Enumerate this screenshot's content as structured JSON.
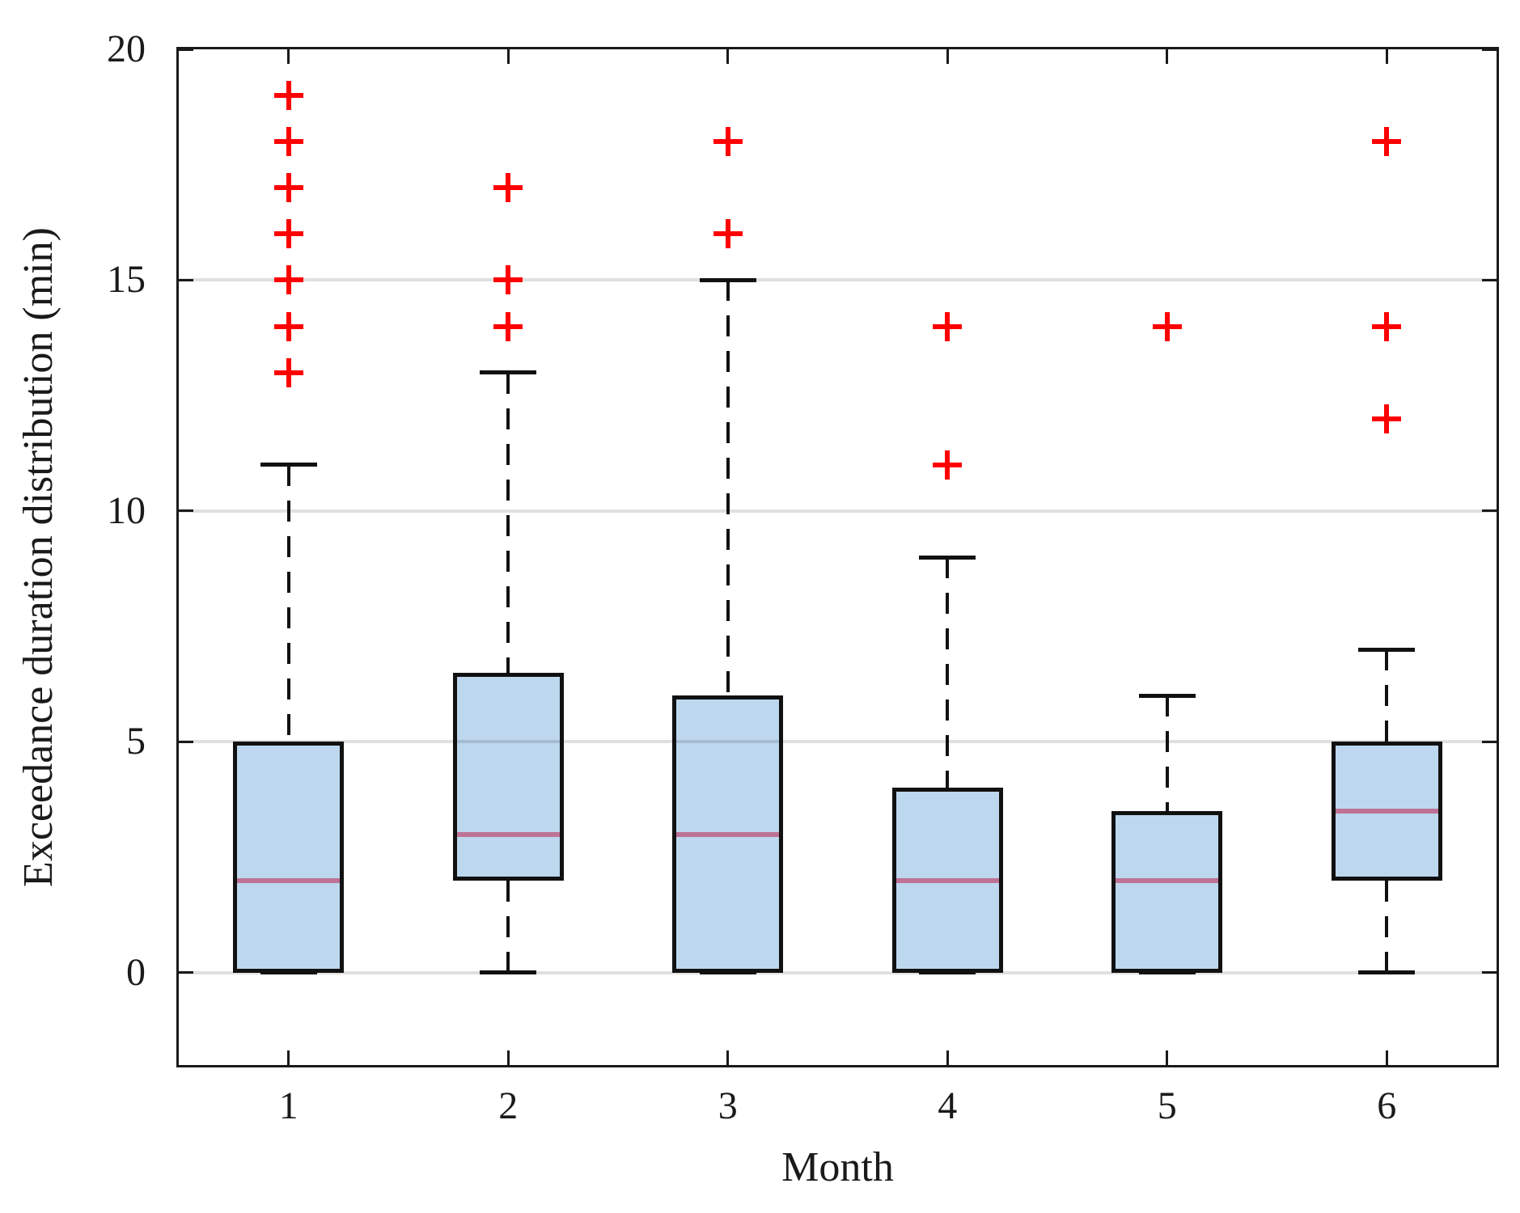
{
  "chart_data": {
    "type": "boxplot",
    "title": "",
    "xlabel": "Month",
    "ylabel": "Exceedance duration distribution (min)",
    "categories": [
      "1",
      "2",
      "3",
      "4",
      "5",
      "6"
    ],
    "ylim": [
      -2,
      20
    ],
    "yticks": [
      0,
      5,
      10,
      15,
      20
    ],
    "gridlines": [
      0,
      5,
      10,
      15
    ],
    "grid_on": true,
    "legend": "none",
    "boxes": [
      {
        "month": "1",
        "whisker_low": 0,
        "q1": 0,
        "median": 2,
        "q3": 5,
        "whisker_high": 11,
        "outliers": [
          13,
          14,
          15,
          16,
          17,
          18,
          19
        ]
      },
      {
        "month": "2",
        "whisker_low": 0,
        "q1": 2,
        "median": 3,
        "q3": 6.5,
        "whisker_high": 13,
        "outliers": [
          14,
          15,
          17
        ]
      },
      {
        "month": "3",
        "whisker_low": 0,
        "q1": 0,
        "median": 3,
        "q3": 6,
        "whisker_high": 15,
        "outliers": [
          16,
          18
        ]
      },
      {
        "month": "4",
        "whisker_low": 0,
        "q1": 0,
        "median": 2,
        "q3": 4,
        "whisker_high": 9,
        "outliers": [
          11,
          14
        ]
      },
      {
        "month": "5",
        "whisker_low": 0,
        "q1": 0,
        "median": 2,
        "q3": 3.5,
        "whisker_high": 6,
        "outliers": [
          14
        ]
      },
      {
        "month": "6",
        "whisker_low": 0,
        "q1": 2,
        "median": 3.5,
        "q3": 5,
        "whisker_high": 7,
        "outliers": [
          12,
          14,
          18
        ]
      }
    ],
    "colors": {
      "box_fill": "#BDD7EE",
      "box_edge": "#111111",
      "median": "#BE7295",
      "outlier": "#FF0000",
      "axis": "#1a1a1a",
      "grid": "rgba(0,0,0,0.12)"
    }
  }
}
